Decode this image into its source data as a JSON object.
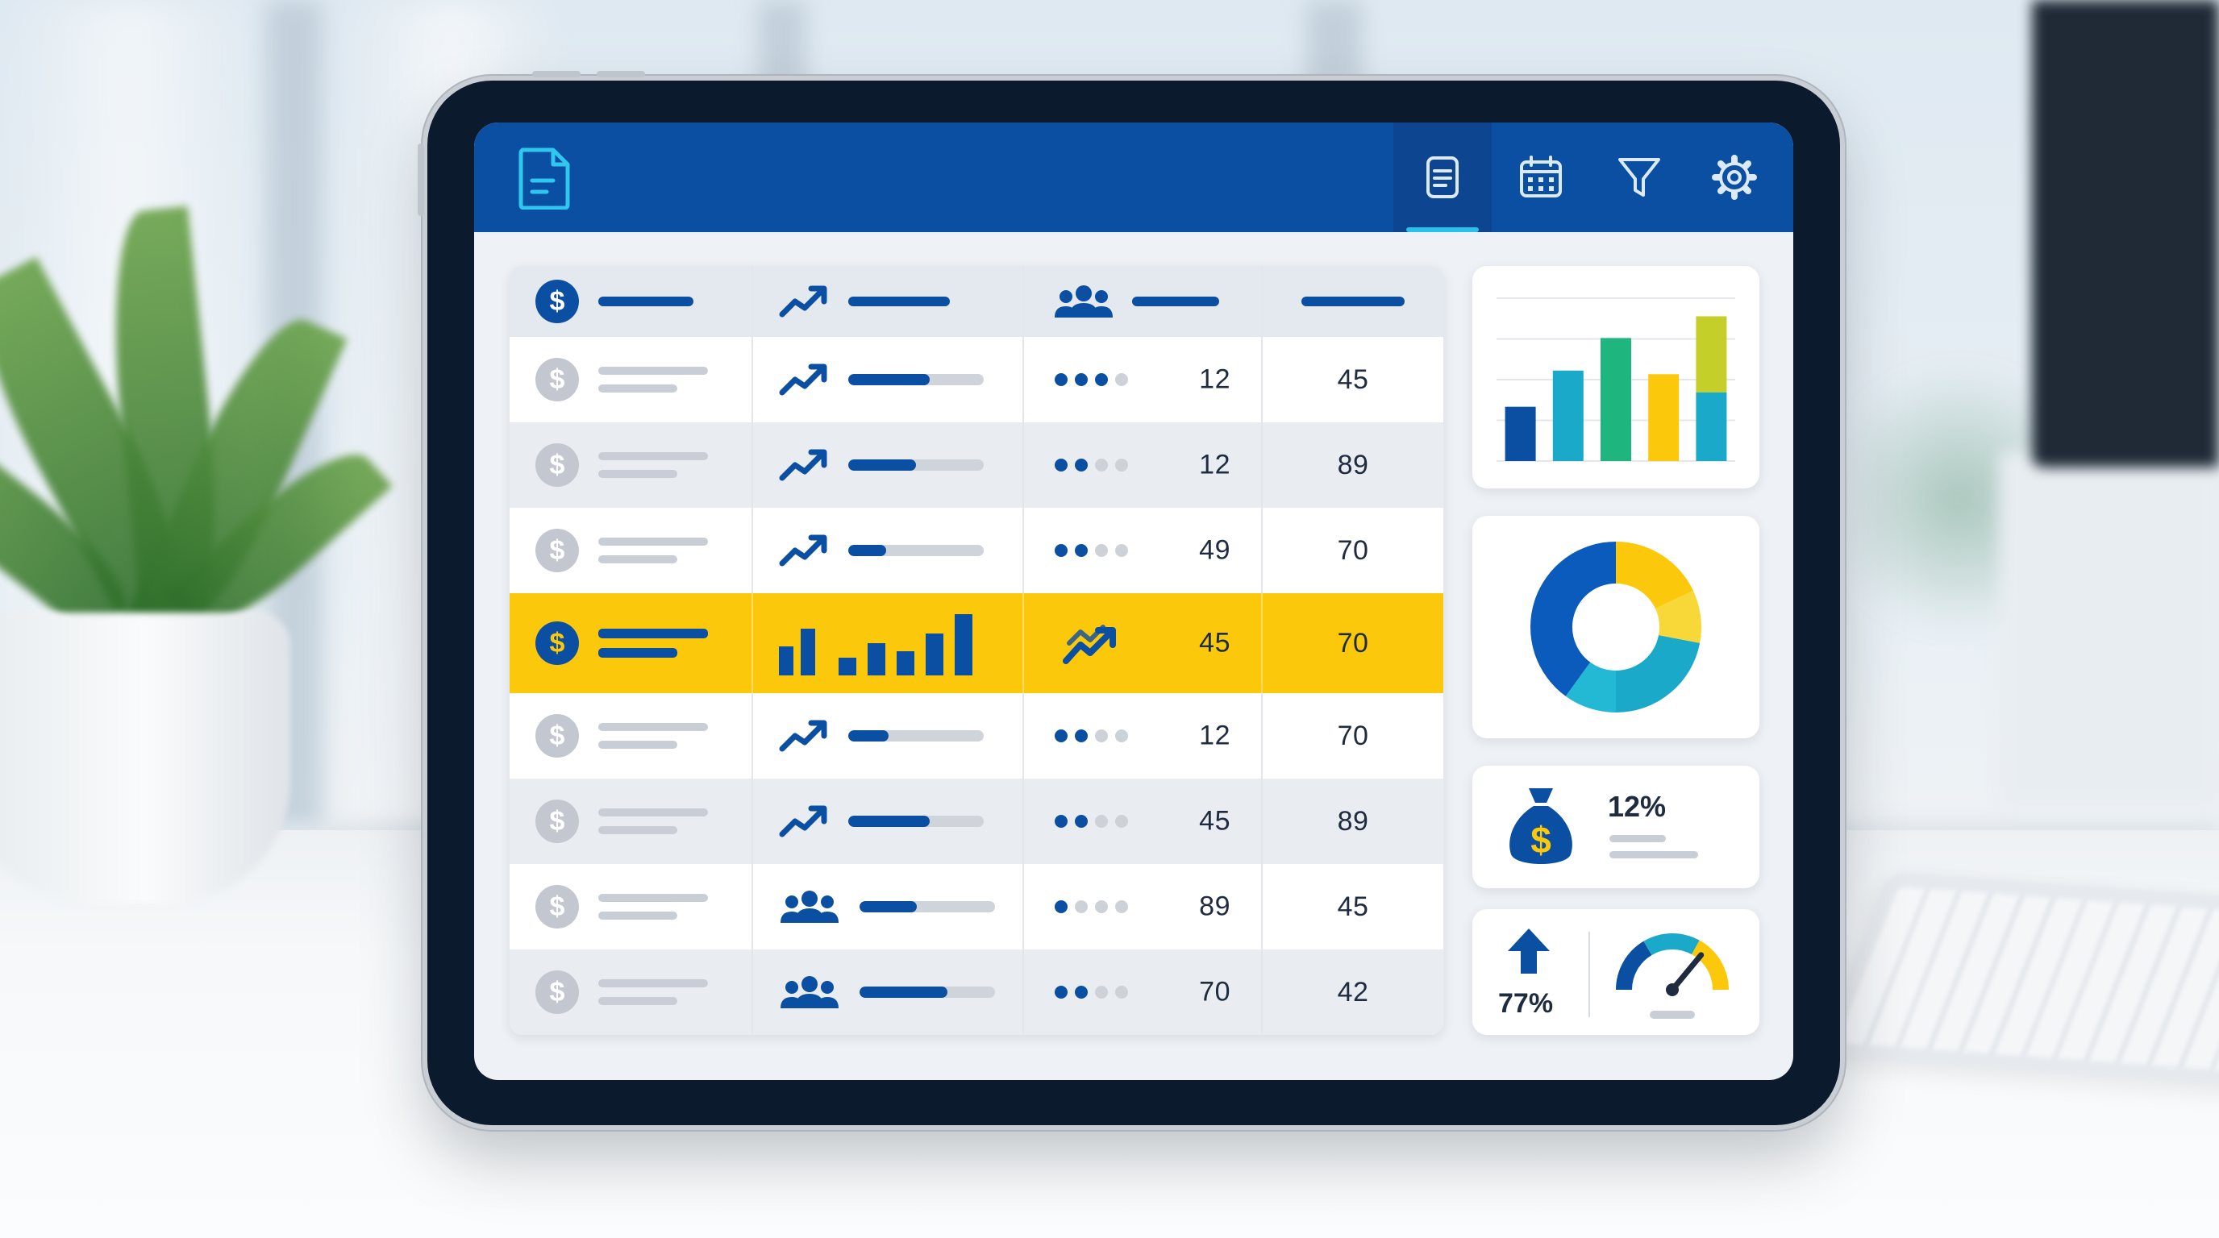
{
  "colors": {
    "header_blue": "#0b4fa2",
    "highlight_yellow": "#fbc80c",
    "teal": "#1aa9c9",
    "green": "#1fb57e",
    "lime": "#c4cf2a",
    "grey_icon": "#c3c8d0"
  },
  "header": {
    "logo_icon": "document-icon",
    "actions": [
      {
        "name": "list-view",
        "icon": "document-list-icon",
        "active": true
      },
      {
        "name": "calendar",
        "icon": "calendar-icon",
        "active": false
      },
      {
        "name": "filter",
        "icon": "filter-icon",
        "active": false
      },
      {
        "name": "settings",
        "icon": "gear-icon",
        "active": false
      }
    ]
  },
  "table": {
    "columns": [
      {
        "icon": "dollar-icon"
      },
      {
        "icon": "trend-up-icon"
      },
      {
        "icon": "users-icon"
      },
      {
        "icon": ""
      }
    ],
    "rows": [
      {
        "style": "white",
        "col2_icon": "trend-up-icon",
        "progress": 0.6,
        "dots": 3,
        "value_a": "12",
        "value_b": "45"
      },
      {
        "style": "grey",
        "col2_icon": "trend-up-icon",
        "progress": 0.5,
        "dots": 2,
        "value_a": "12",
        "value_b": "89"
      },
      {
        "style": "white",
        "col2_icon": "trend-up-icon",
        "progress": 0.28,
        "dots": 2,
        "value_a": "49",
        "value_b": "70"
      },
      {
        "style": "highlight",
        "col2_icon": "bar-chart-icon",
        "progress": null,
        "dots": null,
        "value_a": "45",
        "value_b": "70"
      },
      {
        "style": "white",
        "col2_icon": "trend-up-icon",
        "progress": 0.3,
        "dots": 2,
        "value_a": "12",
        "value_b": "70"
      },
      {
        "style": "grey",
        "col2_icon": "trend-up-icon",
        "progress": 0.6,
        "dots": 2,
        "value_a": "45",
        "value_b": "89"
      },
      {
        "style": "white",
        "col2_icon": "users-icon",
        "progress": 0.42,
        "dots": 1,
        "value_a": "89",
        "value_b": "45"
      },
      {
        "style": "grey",
        "col2_icon": "users-icon",
        "progress": 0.65,
        "dots": 2,
        "value_a": "70",
        "value_b": "42"
      }
    ]
  },
  "widgets": {
    "bar_chart": {
      "type": "bar",
      "bars": [
        {
          "segments": [
            {
              "value": 30,
              "color": "#0b4fa2"
            }
          ]
        },
        {
          "segments": [
            {
              "value": 50,
              "color": "#1aa9c9"
            }
          ]
        },
        {
          "segments": [
            {
              "value": 68,
              "color": "#1fb57e"
            }
          ]
        },
        {
          "segments": [
            {
              "value": 48,
              "color": "#fbc80c"
            }
          ]
        },
        {
          "segments": [
            {
              "value": 38,
              "color": "#1aa9c9"
            },
            {
              "value": 42,
              "color": "#c4cf2a"
            }
          ]
        }
      ],
      "ylim": [
        0,
        90
      ],
      "grid": true
    },
    "donut_chart": {
      "type": "pie",
      "slices": [
        {
          "value": 18,
          "color": "#fbc80c"
        },
        {
          "value": 10,
          "color": "#f7d838"
        },
        {
          "value": 22,
          "color": "#1aa9c9"
        },
        {
          "value": 10,
          "color": "#23b8d3"
        },
        {
          "value": 40,
          "color": "#0b5bbd"
        }
      ]
    },
    "savings": {
      "icon": "money-bag-icon",
      "percent": "12%"
    },
    "growth": {
      "icon": "arrow-up-icon",
      "percent": "77%"
    },
    "gauge": {
      "icon": "gauge-icon",
      "level": 0.72
    }
  }
}
